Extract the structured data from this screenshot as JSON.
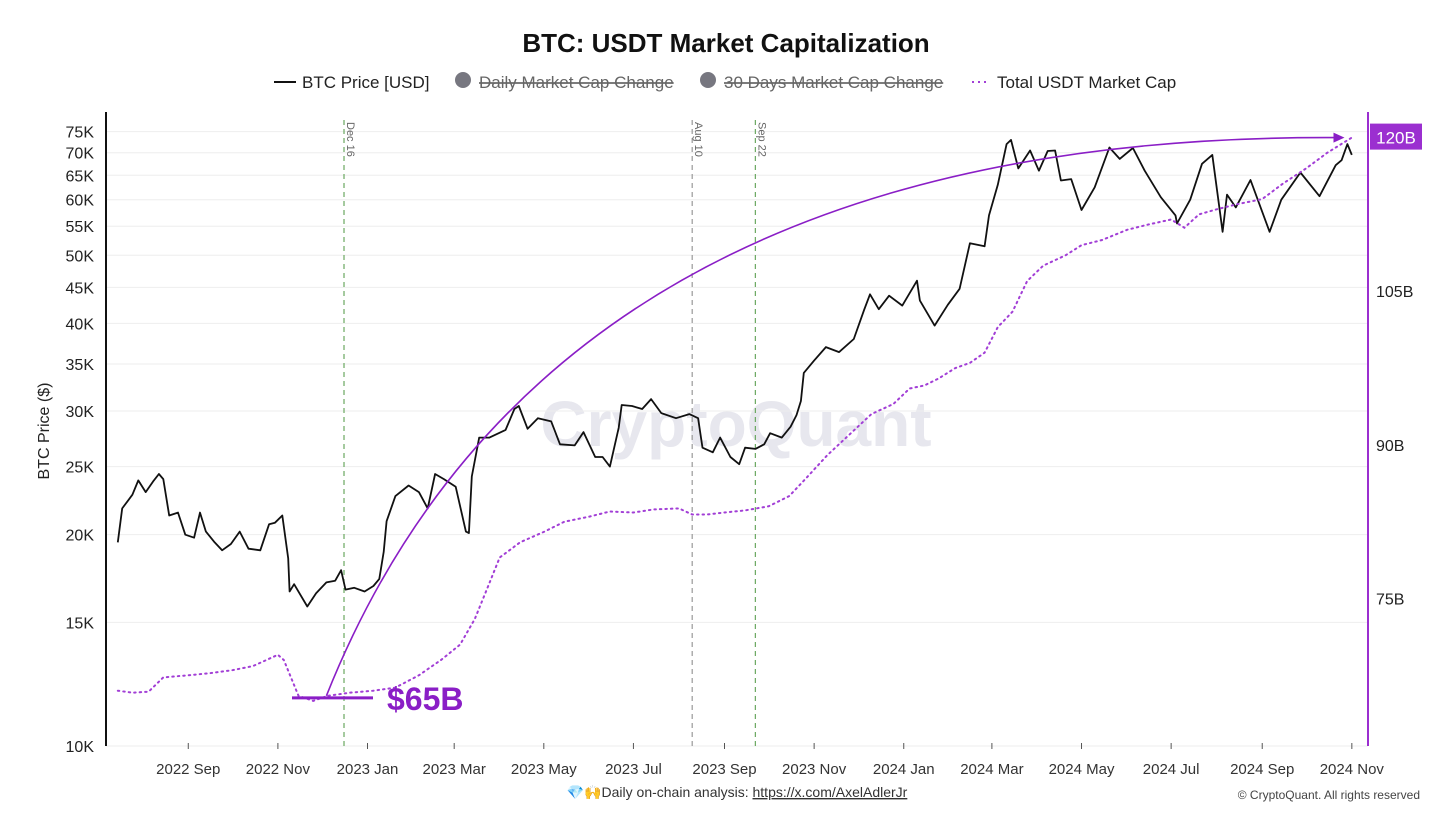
{
  "chart_data": {
    "type": "line",
    "title": "BTC: USDT Market Capitalization",
    "legend": {
      "placement": "top-center",
      "items": [
        {
          "label": "BTC Price [USD]",
          "marker": "line",
          "color": "#111111",
          "active": true
        },
        {
          "label": "Daily Market Cap Change",
          "marker": "dot",
          "color": "#777780",
          "active": false
        },
        {
          "label": "30 Days Market Cap Change",
          "marker": "dot",
          "color": "#777780",
          "active": false
        },
        {
          "label": "Total USDT Market Cap",
          "marker": "dotted",
          "color": "#a23fd6",
          "active": true
        }
      ]
    },
    "ylabel": "BTC Price ($)",
    "y_scale": "log",
    "ylim": [
      10000,
      80000
    ],
    "y_ticks": [
      {
        "v": 75000,
        "label": "75K"
      },
      {
        "v": 70000,
        "label": "70K"
      },
      {
        "v": 65000,
        "label": "65K"
      },
      {
        "v": 60000,
        "label": "60K"
      },
      {
        "v": 55000,
        "label": "55K"
      },
      {
        "v": 50000,
        "label": "50K"
      },
      {
        "v": 45000,
        "label": "45K"
      },
      {
        "v": 40000,
        "label": "40K"
      },
      {
        "v": 35000,
        "label": "35K"
      },
      {
        "v": 30000,
        "label": "30K"
      },
      {
        "v": 25000,
        "label": "25K"
      },
      {
        "v": 20000,
        "label": "20K"
      },
      {
        "v": 15000,
        "label": "15K"
      },
      {
        "v": 10000,
        "label": "10K"
      }
    ],
    "y2_ticks": [
      {
        "v": 120,
        "label": "120B",
        "badge": true
      },
      {
        "v": 105,
        "label": "105B"
      },
      {
        "v": 90,
        "label": "90B"
      },
      {
        "v": 75,
        "label": "75B"
      }
    ],
    "x_ticks": [
      {
        "v": "2022-09-01",
        "label": "2022 Sep"
      },
      {
        "v": "2022-11-01",
        "label": "2022 Nov"
      },
      {
        "v": "2023-01-01",
        "label": "2023 Jan"
      },
      {
        "v": "2023-03-01",
        "label": "2023 Mar"
      },
      {
        "v": "2023-05-01",
        "label": "2023 May"
      },
      {
        "v": "2023-07-01",
        "label": "2023 Jul"
      },
      {
        "v": "2023-09-01",
        "label": "2023 Sep"
      },
      {
        "v": "2023-11-01",
        "label": "2023 Nov"
      },
      {
        "v": "2024-01-01",
        "label": "2024 Jan"
      },
      {
        "v": "2024-03-01",
        "label": "2024 Mar"
      },
      {
        "v": "2024-05-01",
        "label": "2024 May"
      },
      {
        "v": "2024-07-01",
        "label": "2024 Jul"
      },
      {
        "v": "2024-09-01",
        "label": "2024 Sep"
      },
      {
        "v": "2024-11-01",
        "label": "2024 Nov"
      }
    ],
    "events": [
      {
        "date": "2022-12-16",
        "label": "Dec 16",
        "color": "#6aa860"
      },
      {
        "date": "2023-08-10",
        "label": "Aug 10",
        "color": "#999999"
      },
      {
        "date": "2023-09-22",
        "label": "Sep 22",
        "color": "#6aa860"
      }
    ],
    "series": [
      {
        "name": "BTC Price [USD]",
        "x": [
          "2022-07-15",
          "2022-07-18",
          "2022-07-25",
          "2022-07-29",
          "2022-08-03",
          "2022-08-08",
          "2022-08-12",
          "2022-08-15",
          "2022-08-19",
          "2022-08-25",
          "2022-08-30",
          "2022-09-05",
          "2022-09-09",
          "2022-09-13",
          "2022-09-19",
          "2022-09-24",
          "2022-09-30",
          "2022-10-06",
          "2022-10-12",
          "2022-10-20",
          "2022-10-26",
          "2022-10-30",
          "2022-11-04",
          "2022-11-08",
          "2022-11-09",
          "2022-11-12",
          "2022-11-21",
          "2022-11-27",
          "2022-12-04",
          "2022-12-10",
          "2022-12-14",
          "2022-12-17",
          "2022-12-23",
          "2022-12-30",
          "2023-01-05",
          "2023-01-09",
          "2023-01-12",
          "2023-01-14",
          "2023-01-20",
          "2023-01-29",
          "2023-02-05",
          "2023-02-11",
          "2023-02-16",
          "2023-02-22",
          "2023-03-02",
          "2023-03-09",
          "2023-03-11",
          "2023-03-13",
          "2023-03-18",
          "2023-03-25",
          "2023-04-05",
          "2023-04-11",
          "2023-04-14",
          "2023-04-20",
          "2023-04-27",
          "2023-05-06",
          "2023-05-12",
          "2023-05-22",
          "2023-05-28",
          "2023-06-05",
          "2023-06-10",
          "2023-06-15",
          "2023-06-21",
          "2023-06-23",
          "2023-06-30",
          "2023-07-07",
          "2023-07-13",
          "2023-07-20",
          "2023-07-30",
          "2023-08-08",
          "2023-08-14",
          "2023-08-17",
          "2023-08-24",
          "2023-08-29",
          "2023-09-05",
          "2023-09-11",
          "2023-09-15",
          "2023-09-22",
          "2023-09-28",
          "2023-10-02",
          "2023-10-10",
          "2023-10-16",
          "2023-10-20",
          "2023-10-23",
          "2023-10-25",
          "2023-11-01",
          "2023-11-09",
          "2023-11-18",
          "2023-11-28",
          "2023-12-05",
          "2023-12-09",
          "2023-12-15",
          "2023-12-22",
          "2023-12-31",
          "2024-01-10",
          "2024-01-12",
          "2024-01-22",
          "2024-01-31",
          "2024-02-08",
          "2024-02-15",
          "2024-02-25",
          "2024-02-28",
          "2024-03-05",
          "2024-03-11",
          "2024-03-14",
          "2024-03-19",
          "2024-03-27",
          "2024-04-02",
          "2024-04-08",
          "2024-04-13",
          "2024-04-17",
          "2024-04-24",
          "2024-05-01",
          "2024-05-10",
          "2024-05-20",
          "2024-05-27",
          "2024-06-05",
          "2024-06-13",
          "2024-06-24",
          "2024-07-04",
          "2024-07-05",
          "2024-07-14",
          "2024-07-22",
          "2024-07-29",
          "2024-08-05",
          "2024-08-08",
          "2024-08-14",
          "2024-08-24",
          "2024-09-06",
          "2024-09-14",
          "2024-09-27",
          "2024-10-10",
          "2024-10-21",
          "2024-10-25",
          "2024-10-29",
          "2024-11-01"
        ],
        "y": [
          19500,
          21800,
          22800,
          23900,
          23000,
          23800,
          24400,
          24000,
          21300,
          21500,
          20000,
          19800,
          21500,
          20200,
          19500,
          19000,
          19400,
          20200,
          19100,
          19000,
          20700,
          20800,
          21300,
          18500,
          16600,
          17000,
          15800,
          16500,
          17100,
          17200,
          17800,
          16700,
          16800,
          16600,
          16900,
          17300,
          18900,
          20900,
          22700,
          23500,
          23000,
          21800,
          24400,
          24000,
          23400,
          20200,
          20100,
          24200,
          27500,
          27500,
          28200,
          30200,
          30500,
          28300,
          29300,
          29000,
          26900,
          26800,
          28000,
          25800,
          25800,
          25000,
          28400,
          30600,
          30500,
          30200,
          31200,
          29800,
          29300,
          29700,
          29300,
          26600,
          26200,
          27500,
          25800,
          25200,
          26600,
          26500,
          26900,
          27900,
          27500,
          28500,
          29600,
          31000,
          34000,
          35400,
          37000,
          36400,
          38000,
          41800,
          44000,
          41900,
          43800,
          42400,
          46000,
          43100,
          39700,
          42500,
          44800,
          52000,
          51500,
          57000,
          63000,
          72000,
          73000,
          66500,
          70500,
          66000,
          70400,
          70500,
          63900,
          64200,
          58000,
          62500,
          71200,
          68600,
          71100,
          66000,
          60500,
          57000,
          55500,
          60000,
          67500,
          69500,
          54000,
          61000,
          58500,
          64000,
          54000,
          60000,
          65600,
          60700,
          67200,
          68300,
          72000,
          69500
        ],
        "color": "#111111"
      },
      {
        "name": "Total USDT Market Cap",
        "x": [
          "2022-07-15",
          "2022-07-25",
          "2022-08-05",
          "2022-08-15",
          "2022-09-01",
          "2022-09-15",
          "2022-10-01",
          "2022-10-15",
          "2022-11-01",
          "2022-11-05",
          "2022-11-15",
          "2022-11-25",
          "2022-12-05",
          "2022-12-20",
          "2023-01-05",
          "2023-01-20",
          "2023-02-05",
          "2023-02-20",
          "2023-03-05",
          "2023-03-15",
          "2023-03-25",
          "2023-04-01",
          "2023-04-15",
          "2023-05-01",
          "2023-05-15",
          "2023-06-01",
          "2023-06-15",
          "2023-07-01",
          "2023-07-15",
          "2023-08-01",
          "2023-08-10",
          "2023-08-20",
          "2023-09-01",
          "2023-09-15",
          "2023-10-01",
          "2023-10-15",
          "2023-10-25",
          "2023-11-10",
          "2023-11-25",
          "2023-12-10",
          "2023-12-25",
          "2024-01-05",
          "2024-01-15",
          "2024-01-25",
          "2024-02-05",
          "2024-02-15",
          "2024-02-25",
          "2024-03-05",
          "2024-03-15",
          "2024-03-25",
          "2024-04-05",
          "2024-04-20",
          "2024-05-01",
          "2024-05-15",
          "2024-06-01",
          "2024-06-15",
          "2024-07-01",
          "2024-07-10",
          "2024-07-20",
          "2024-08-01",
          "2024-08-15",
          "2024-09-01",
          "2024-09-15",
          "2024-10-01",
          "2024-10-15",
          "2024-11-01"
        ],
        "y": [
          66.0,
          65.8,
          65.9,
          67.3,
          67.5,
          67.7,
          68.0,
          68.4,
          69.5,
          69.0,
          65.5,
          65.0,
          65.5,
          65.8,
          66.0,
          66.3,
          67.5,
          69.0,
          70.5,
          73.0,
          76.5,
          79.0,
          80.5,
          81.5,
          82.5,
          83.0,
          83.5,
          83.4,
          83.7,
          83.8,
          83.2,
          83.2,
          83.4,
          83.6,
          84.0,
          85.0,
          86.5,
          89.0,
          91.0,
          93.0,
          94.0,
          95.5,
          95.8,
          96.5,
          97.5,
          98.0,
          99.0,
          101.5,
          103.0,
          106.0,
          107.5,
          108.5,
          109.5,
          110.0,
          111.0,
          111.5,
          112.0,
          111.2,
          112.5,
          113.0,
          113.5,
          114.0,
          115.5,
          117.0,
          118.5,
          120.0
        ],
        "color": "#a23fd6",
        "style": "dotted",
        "axis": "right"
      }
    ],
    "annotations": [
      {
        "type": "label",
        "text": "$65B",
        "color": "#8a1ec6"
      },
      {
        "type": "arrow",
        "from_date": "2022-12-04",
        "from_value": 65.5,
        "to_date": "2024-10-27",
        "to_value": 120.0,
        "color": "#8a1ec6"
      }
    ],
    "watermark": "CryptoQuant"
  },
  "footer": {
    "icons": "💎🙌",
    "prefix": "Daily on-chain analysis: ",
    "link": "https://x.com/AxelAdlerJr",
    "copyright": "© CryptoQuant. All rights reserved"
  }
}
